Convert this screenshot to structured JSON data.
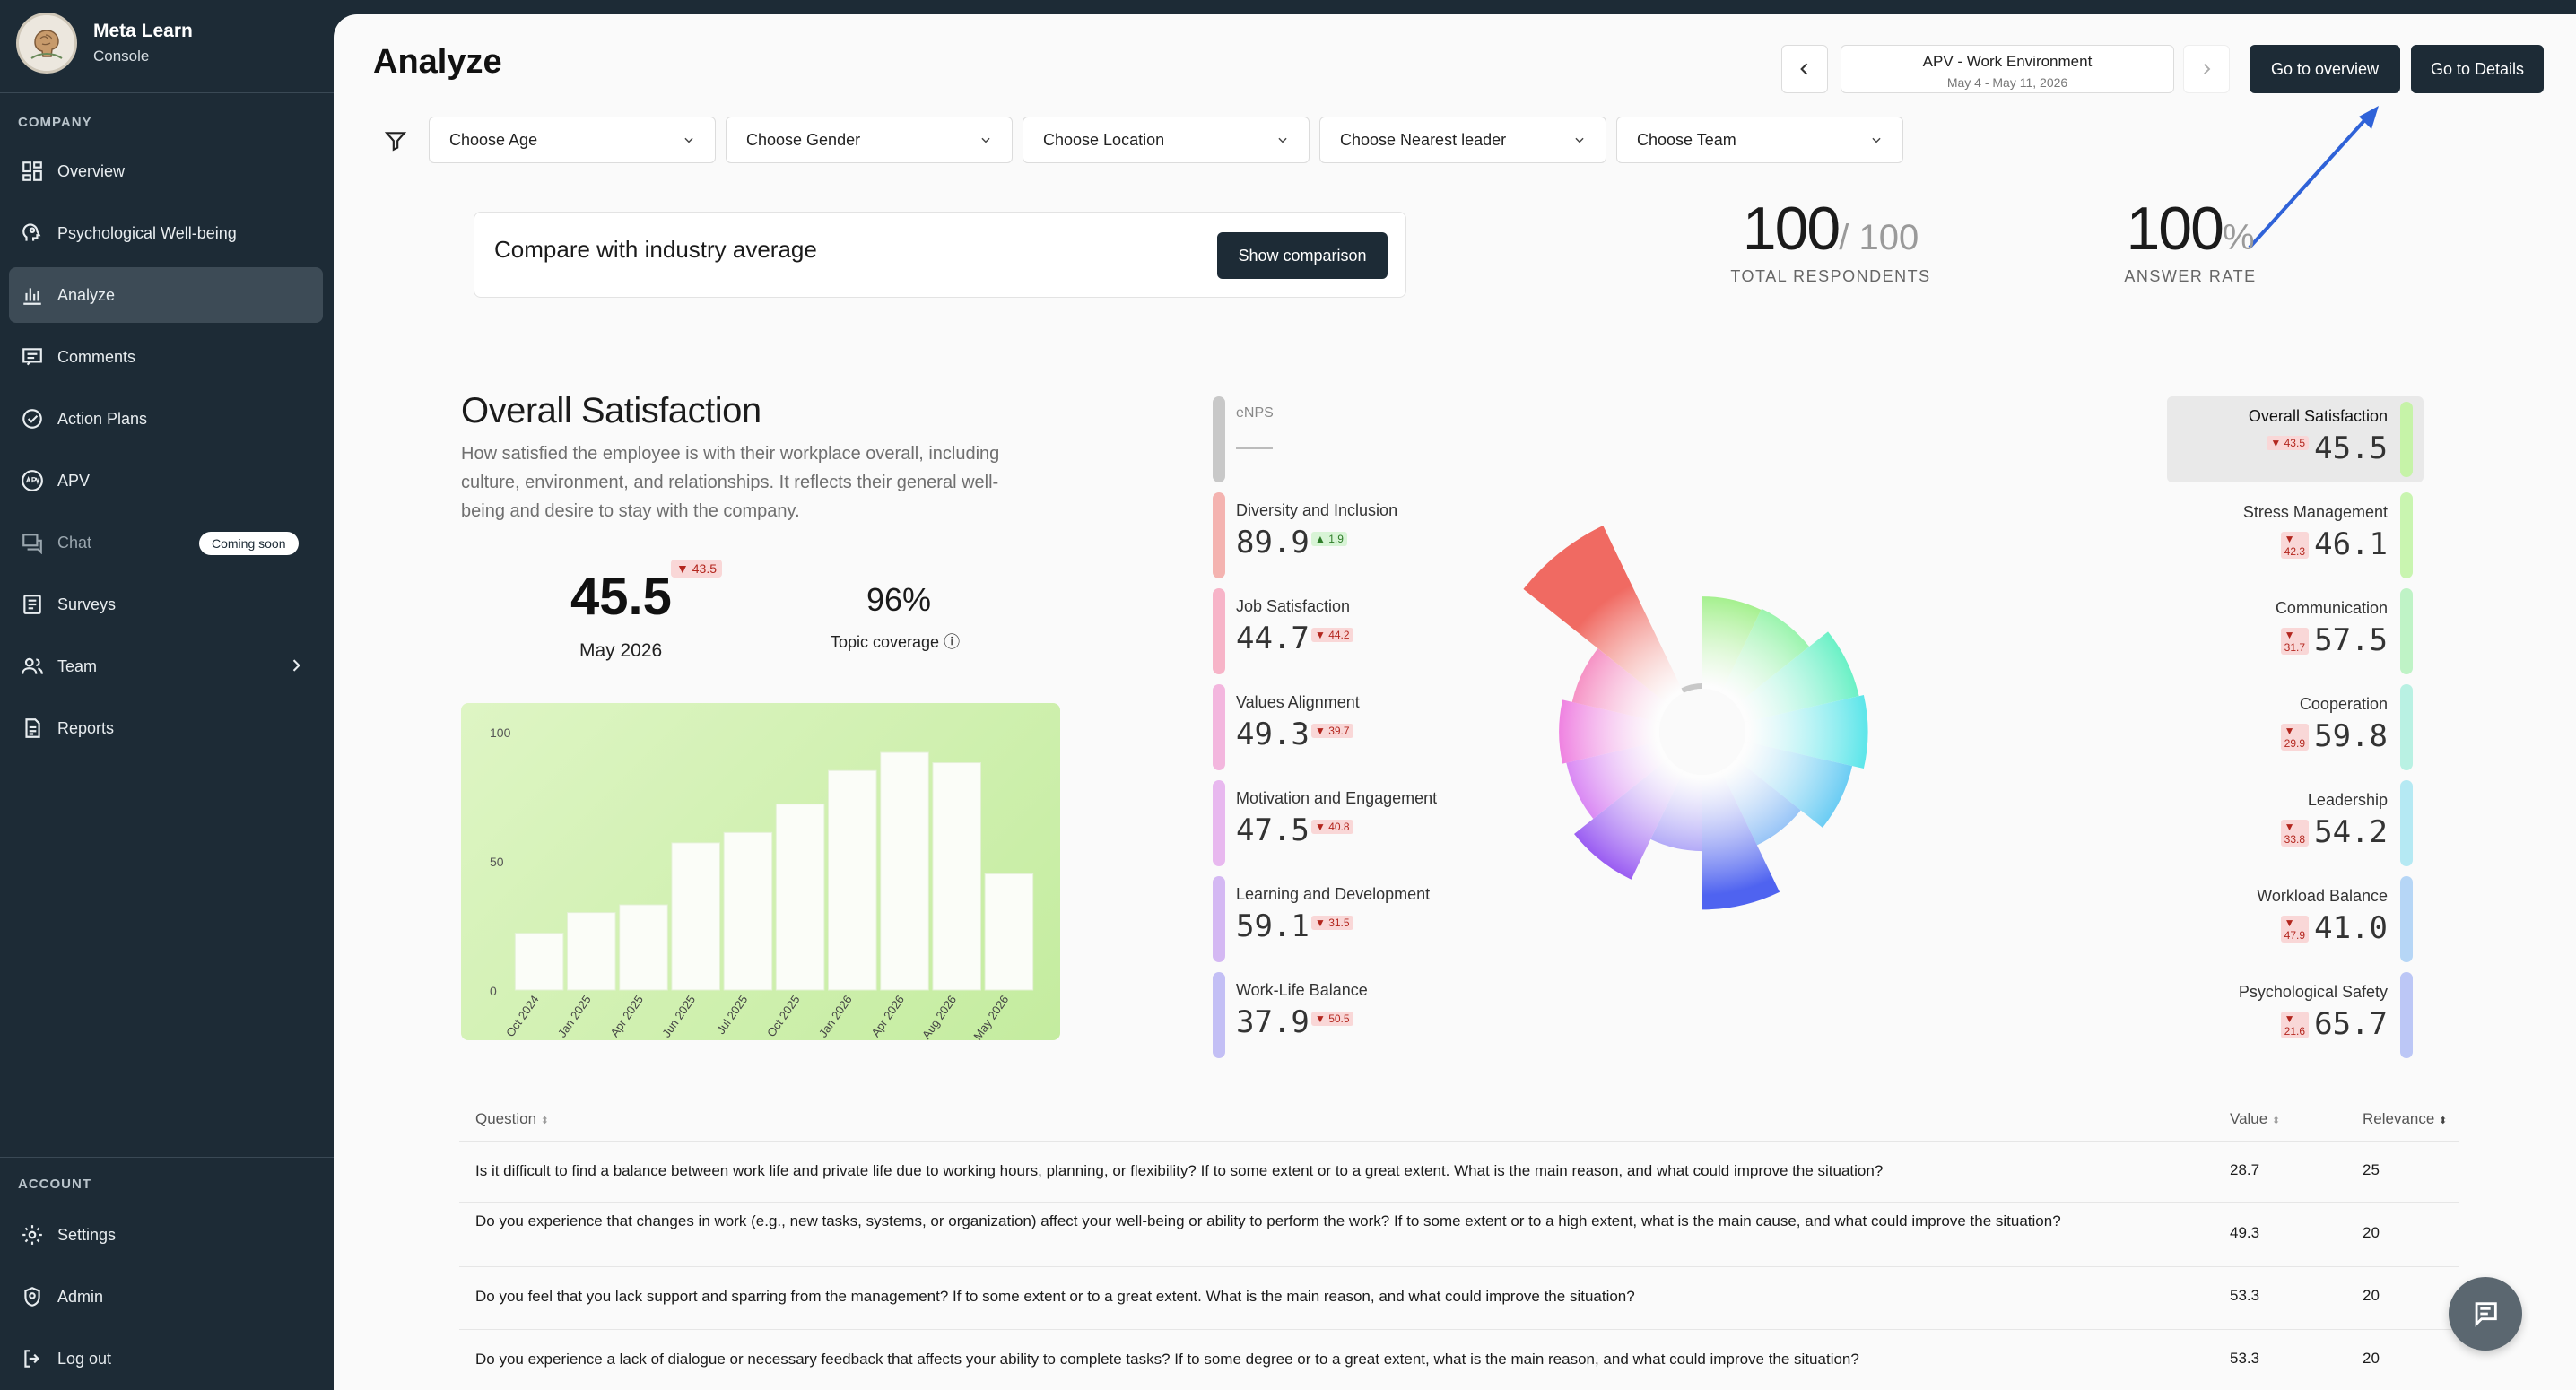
{
  "brand": {
    "name": "Meta Learn",
    "subtitle": "Console"
  },
  "sidebar": {
    "company_label": "COMPANY",
    "account_label": "ACCOUNT",
    "items": [
      {
        "label": "Overview",
        "icon": "grid-icon"
      },
      {
        "label": "Psychological Well-being",
        "icon": "head-icon"
      },
      {
        "label": "Analyze",
        "icon": "bar-chart-icon",
        "active": true
      },
      {
        "label": "Comments",
        "icon": "comment-icon"
      },
      {
        "label": "Action Plans",
        "icon": "check-circle-icon"
      },
      {
        "label": "APV",
        "icon": "apv-icon"
      },
      {
        "label": "Chat",
        "icon": "chat-icon",
        "badge": "Coming soon"
      },
      {
        "label": "Surveys",
        "icon": "list-icon"
      },
      {
        "label": "Team",
        "icon": "team-icon"
      },
      {
        "label": "Reports",
        "icon": "report-icon"
      }
    ],
    "account_items": [
      {
        "label": "Settings",
        "icon": "gear-icon"
      },
      {
        "label": "Admin",
        "icon": "admin-icon"
      },
      {
        "label": "Log out",
        "icon": "logout-icon"
      }
    ]
  },
  "header": {
    "title": "Analyze",
    "period_title": "APV - Work Environment",
    "period_dates": "May 4 - May 11, 2026",
    "overview_button": "Go to overview",
    "details_button": "Go to Details"
  },
  "filters": [
    "Choose Age",
    "Choose Gender",
    "Choose Location",
    "Choose Nearest leader",
    "Choose Team"
  ],
  "compare": {
    "text": "Compare with industry average",
    "button": "Show comparison"
  },
  "kpis": {
    "respondents": {
      "value": "100",
      "suffix": "/ 100",
      "label": "TOTAL RESPONDENTS"
    },
    "answer_rate": {
      "value": "100",
      "suffix": "%",
      "label": "ANSWER RATE"
    }
  },
  "overall": {
    "title": "Overall Satisfaction",
    "description": "How satisfied the employee is with their workplace overall, including culture, environment, and relationships. It reflects their general well-being and desire to stay with the company.",
    "value": "45.5",
    "delta": "▼ 43.5",
    "date": "May 2026",
    "coverage": "96%",
    "coverage_label": "Topic coverage ⓘ"
  },
  "chart_data": {
    "type": "bar",
    "categories": [
      "Oct 2024",
      "Jan 2025",
      "Apr 2025",
      "Jun 2025",
      "Jul 2025",
      "Oct 2025",
      "Jan 2026",
      "Apr 2026",
      "Aug 2026",
      "May 2026"
    ],
    "values": [
      22,
      30,
      33,
      57,
      61,
      72,
      85,
      92,
      88,
      45
    ],
    "ylim": [
      0,
      100
    ],
    "yticks": [
      "0",
      "50",
      "100"
    ],
    "grid": false
  },
  "metrics_left": [
    {
      "name": "eNPS",
      "value": "——",
      "delta": "",
      "dir": "none",
      "color": "#c8c8c8"
    },
    {
      "name": "Diversity and Inclusion",
      "value": "89.9",
      "delta": "▲ 1.9",
      "dir": "up",
      "color": "#f4b3b0"
    },
    {
      "name": "Job Satisfaction",
      "value": "44.7",
      "delta": "▼ 44.2",
      "dir": "down",
      "color": "#f7b4c8"
    },
    {
      "name": "Values Alignment",
      "value": "49.3",
      "delta": "▼ 39.7",
      "dir": "down",
      "color": "#f3b6de"
    },
    {
      "name": "Motivation and Engagement",
      "value": "47.5",
      "delta": "▼ 40.8",
      "dir": "down",
      "color": "#e8b8ef"
    },
    {
      "name": "Learning and Development",
      "value": "59.1",
      "delta": "▼ 31.5",
      "dir": "down",
      "color": "#d4b8f3"
    },
    {
      "name": "Work-Life Balance",
      "value": "37.9",
      "delta": "▼ 50.5",
      "dir": "down",
      "color": "#c3bff5"
    }
  ],
  "metrics_right": [
    {
      "name": "Overall Satisfaction",
      "value": "45.5",
      "delta": "▼ 43.5",
      "dir": "down",
      "color": "#c6f3a8",
      "active": true
    },
    {
      "name": "Stress Management",
      "value": "46.1",
      "delta": "▼ 42.3",
      "dir": "down",
      "color": "#c9f5b0"
    },
    {
      "name": "Communication",
      "value": "57.5",
      "delta": "▼ 31.7",
      "dir": "down",
      "color": "#bff3c6"
    },
    {
      "name": "Cooperation",
      "value": "59.8",
      "delta": "▼ 29.9",
      "dir": "down",
      "color": "#b9f1e3"
    },
    {
      "name": "Leadership",
      "value": "54.2",
      "delta": "▼ 33.8",
      "dir": "down",
      "color": "#b5e9f3"
    },
    {
      "name": "Workload Balance",
      "value": "41.0",
      "delta": "▼ 47.9",
      "dir": "down",
      "color": "#b6d6f6"
    },
    {
      "name": "Psychological Safety",
      "value": "65.7",
      "delta": "▼ 21.6",
      "dir": "down",
      "color": "#bcc7f6"
    }
  ],
  "radial": [
    {
      "name": "Overall Satisfaction",
      "value": 45.5,
      "color": "#7bea5a"
    },
    {
      "name": "Stress Management",
      "value": 46.1,
      "color": "#6ff08a"
    },
    {
      "name": "Communication",
      "value": 57.5,
      "color": "#66f0c4"
    },
    {
      "name": "Cooperation",
      "value": 59.8,
      "color": "#5fe6ea"
    },
    {
      "name": "Leadership",
      "value": 54.2,
      "color": "#58c6f2"
    },
    {
      "name": "Workload Balance",
      "value": 41.0,
      "color": "#4f9cf2"
    },
    {
      "name": "Psychological Safety",
      "value": 65.7,
      "color": "#4f63f0"
    },
    {
      "name": "Work-Life Balance",
      "value": 37.9,
      "color": "#6f5ef2"
    },
    {
      "name": "Learning and Development",
      "value": 59.1,
      "color": "#9b5ef2"
    },
    {
      "name": "Motivation and Engagement",
      "value": 47.5,
      "color": "#cc5cf0"
    },
    {
      "name": "Values Alignment",
      "value": 49.3,
      "color": "#ea5cd8"
    },
    {
      "name": "Job Satisfaction",
      "value": 44.7,
      "color": "#f25ca8"
    },
    {
      "name": "Diversity and Inclusion",
      "value": 89.9,
      "color": "#f06a62"
    },
    {
      "name": "eNPS",
      "value": 0,
      "color": "#c8c8c8"
    }
  ],
  "table": {
    "headers": {
      "question": "Question",
      "value": "Value",
      "relevance": "Relevance"
    },
    "rows": [
      {
        "q": "Is it difficult to find a balance between work life and private life due to working hours, planning, or flexibility? If to some extent or to a great extent. What is the main reason, and what could improve the situation?",
        "v": "28.7",
        "r": "25"
      },
      {
        "q": "Do you experience that changes in work (e.g., new tasks, systems, or organization) affect your well-being or ability to perform the work? If to some extent or to a high extent, what is the main cause, and what could improve the situation?",
        "v": "49.3",
        "r": "20"
      },
      {
        "q": "Do you feel that you lack support and sparring from the management? If to some extent or to a great extent. What is the main reason, and what could improve the situation?",
        "v": "53.3",
        "r": "20"
      },
      {
        "q": "Do you experience a lack of dialogue or necessary feedback that affects your ability to complete tasks? If to some degree or to a great extent, what is the main reason, and what could improve the situation?",
        "v": "53.3",
        "r": "20"
      }
    ]
  },
  "colors": {
    "sidebar": "#1d2b36",
    "accent": "#1d2b36",
    "arrow": "#2f62d8",
    "delta_down": "#b3261e",
    "delta_up": "#2f7d2a"
  }
}
